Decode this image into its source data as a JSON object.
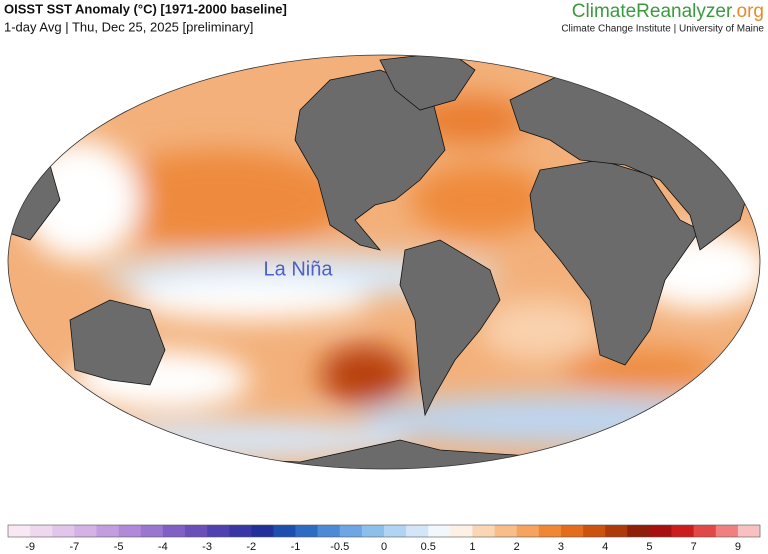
{
  "header": {
    "title": "OISST SST Anomaly (°C) [1971-2000 baseline]",
    "subtitle": "1-day Avg | Thu, Dec 25, 2025 [preliminary]"
  },
  "brand": {
    "name": "ClimateReanalyzer",
    "suffix": ".org",
    "tagline": "Climate Change Institute | University of Maine"
  },
  "map": {
    "annotation": "La Niña"
  },
  "legend": {
    "ticks": [
      -9,
      -7,
      -5,
      -4,
      -3,
      -2,
      -1,
      -0.5,
      0,
      0.5,
      1,
      2,
      3,
      4,
      5,
      7,
      9
    ],
    "colors": [
      "#f7e8f4",
      "#eed8ee",
      "#e2c6ea",
      "#d4b2e6",
      "#c29ee0",
      "#b08ad8",
      "#9a76cf",
      "#8060c4",
      "#6a4fbb",
      "#4f42b0",
      "#3a36a3",
      "#22309a",
      "#1e4fb0",
      "#2e6cc4",
      "#4d8ad6",
      "#6da6e2",
      "#8dbfeb",
      "#b0d4f2",
      "#d2e6f8",
      "#f2f7fc",
      "#fdf0e4",
      "#fbd6b4",
      "#f8bd88",
      "#f5a35e",
      "#ef8735",
      "#e36d1c",
      "#cc5210",
      "#ae3a0c",
      "#8e1f08",
      "#a81010",
      "#cc1c1c",
      "#e24848",
      "#f08080",
      "#f8c0c0"
    ]
  }
}
